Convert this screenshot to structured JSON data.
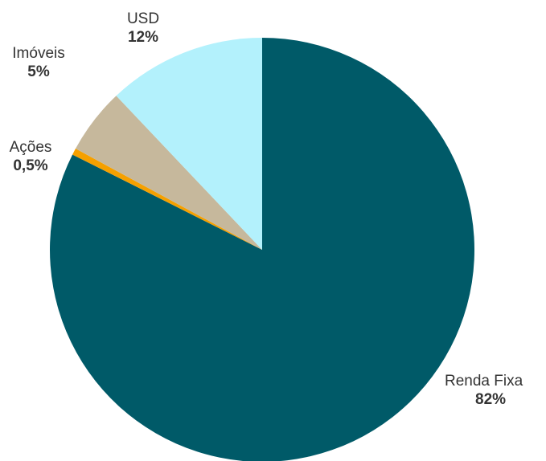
{
  "chart_data": {
    "type": "pie",
    "slices": [
      {
        "label": "Renda Fixa",
        "value": 82,
        "display": "82%",
        "color": "#005a68"
      },
      {
        "label": "Ações",
        "value": 0.5,
        "display": "0,5%",
        "color": "#f5a000"
      },
      {
        "label": "Imóveis",
        "value": 5,
        "display": "5%",
        "color": "#c6b89c"
      },
      {
        "label": "USD",
        "value": 12,
        "display": "12%",
        "color": "#b3f1fc"
      }
    ],
    "start": "12 o'clock",
    "direction": "clockwise",
    "legend": "none",
    "data_labels": "outside"
  }
}
